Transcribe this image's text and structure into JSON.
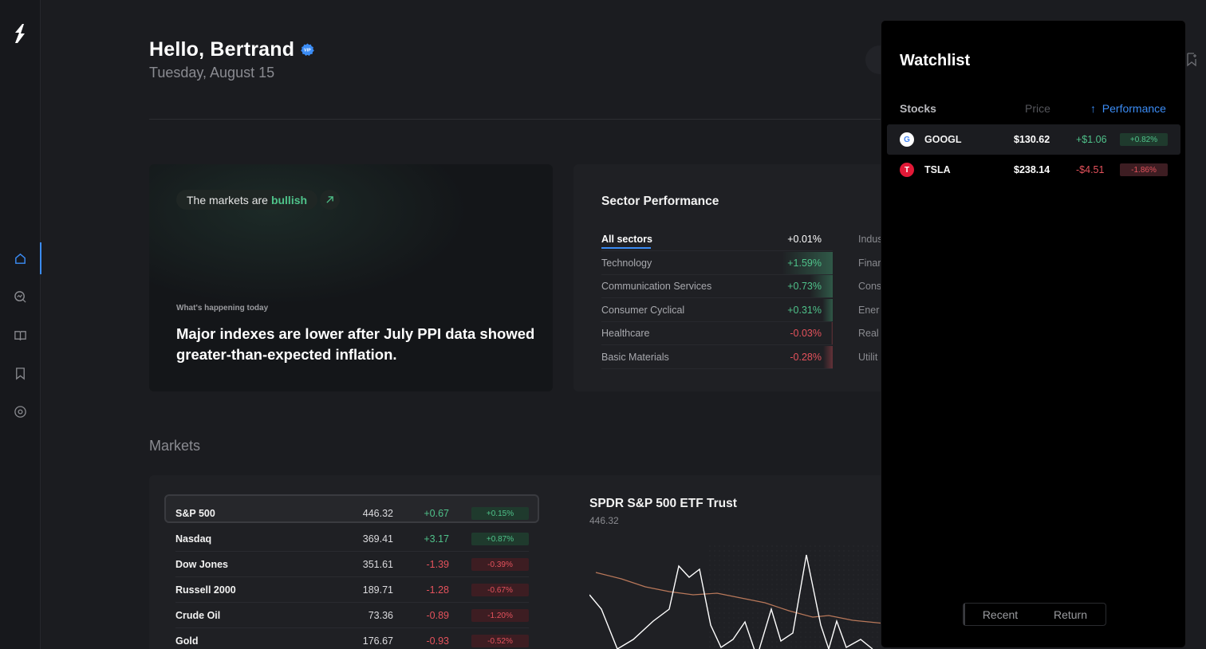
{
  "header": {
    "greeting": "Hello, Bertrand",
    "date": "Tuesday, August 15"
  },
  "hero": {
    "market_prefix": "The markets are",
    "market_mood": "bullish",
    "section_label": "What's happening today",
    "headline": "Major indexes are lower after July PPI data showed greater-than-expected inflation."
  },
  "sector_performance": {
    "title": "Sector Performance",
    "rows": [
      {
        "name": "All sectors",
        "value": "+0.01%",
        "bar_fraction": 0
      },
      {
        "name": "Technology",
        "value": "+1.59%",
        "bar_fraction": 1.0
      },
      {
        "name": "Communication Services",
        "value": "+0.73%",
        "bar_fraction": 0.46
      },
      {
        "name": "Consumer Cyclical",
        "value": "+0.31%",
        "bar_fraction": 0.2
      },
      {
        "name": "Healthcare",
        "value": "-0.03%",
        "bar_fraction": 0.02
      },
      {
        "name": "Basic Materials",
        "value": "-0.28%",
        "bar_fraction": 0.18
      }
    ],
    "second_column": [
      "Indus",
      "Finar",
      "Cons",
      "Ener",
      "Real",
      "Utilit"
    ]
  },
  "markets": {
    "title": "Markets",
    "rows": [
      {
        "name": "S&P 500",
        "price": "446.32",
        "change": "+0.67",
        "percent": "+0.15%"
      },
      {
        "name": "Nasdaq",
        "price": "369.41",
        "change": "+3.17",
        "percent": "+0.87%"
      },
      {
        "name": "Dow Jones",
        "price": "351.61",
        "change": "-1.39",
        "percent": "-0.39%"
      },
      {
        "name": "Russell 2000",
        "price": "189.71",
        "change": "-1.28",
        "percent": "-0.67%"
      },
      {
        "name": "Crude Oil",
        "price": "73.36",
        "change": "-0.89",
        "percent": "-1.20%"
      },
      {
        "name": "Gold",
        "price": "176.67",
        "change": "-0.93",
        "percent": "-0.52%"
      }
    ],
    "selected_name": "SPDR S&P 500 ETF Trust",
    "selected_price": "446.32"
  },
  "watchlist": {
    "title": "Watchlist",
    "col_stocks": "Stocks",
    "col_price": "Price",
    "col_performance": "Performance",
    "sort_arrow": "↑",
    "rows": [
      {
        "symbol": "GOOGL",
        "price": "$130.62",
        "change": "+$1.06",
        "percent": "+0.82%"
      },
      {
        "symbol": "TSLA",
        "price": "$238.14",
        "change": "-$4.51",
        "percent": "-1.86%"
      }
    ],
    "tabs": [
      "Recent",
      "Return"
    ]
  },
  "colors": {
    "accent": "#3b8cf5",
    "positive": "#4fc28a",
    "negative": "#e5525c",
    "background": "#1b1c20"
  },
  "icons": {
    "logo": "logo-icon",
    "nav": [
      "home-icon",
      "search-chart-icon",
      "book-icon",
      "bookmark-icon",
      "target-icon"
    ]
  }
}
